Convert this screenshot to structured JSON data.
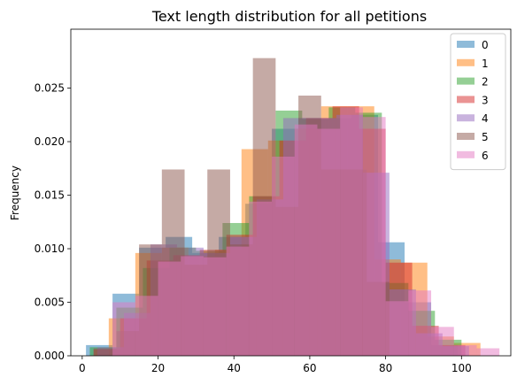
{
  "chart_data": {
    "type": "histogram",
    "title": "Text length distribution for all petitions",
    "xlabel": "",
    "ylabel": "Frequency",
    "xlim": [
      -3,
      113
    ],
    "ylim": [
      0,
      0.0305
    ],
    "x_ticks": [
      0,
      20,
      40,
      60,
      80,
      100
    ],
    "y_ticks": [
      0.0,
      0.005,
      0.01,
      0.015,
      0.02,
      0.025
    ],
    "y_tick_labels": [
      "0.000",
      "0.005",
      "0.010",
      "0.015",
      "0.020",
      "0.025"
    ],
    "grid": false,
    "legend_position": "top-right",
    "bar_alpha": 0.5,
    "series": [
      {
        "name": "0",
        "color": "#1f77b4",
        "bars": [
          [
            1,
            8,
            0.001
          ],
          [
            8,
            15,
            0.0058
          ],
          [
            15,
            22,
            0.0101
          ],
          [
            22,
            29,
            0.0111
          ],
          [
            29,
            36,
            0.0096
          ],
          [
            36,
            43,
            0.0111
          ],
          [
            43,
            50,
            0.0142
          ],
          [
            50,
            57,
            0.0212
          ],
          [
            57,
            64,
            0.0222
          ],
          [
            64,
            71,
            0.0222
          ],
          [
            71,
            78,
            0.0225
          ],
          [
            78,
            85,
            0.0106
          ],
          [
            85,
            92,
            0.005
          ],
          [
            92,
            99,
            0.001
          ]
        ]
      },
      {
        "name": "1",
        "color": "#ff7f0e",
        "bars": [
          [
            7,
            14,
            0.0035
          ],
          [
            14,
            21,
            0.0096
          ],
          [
            21,
            28,
            0.0101
          ],
          [
            28,
            35,
            0.0093
          ],
          [
            35,
            42,
            0.0099
          ],
          [
            42,
            49,
            0.0193
          ],
          [
            49,
            56,
            0.0201
          ],
          [
            56,
            63,
            0.0212
          ],
          [
            63,
            70,
            0.0233
          ],
          [
            70,
            77,
            0.0233
          ],
          [
            77,
            84,
            0.009
          ],
          [
            84,
            91,
            0.0087
          ],
          [
            91,
            98,
            0.0018
          ],
          [
            98,
            105,
            0.0012
          ]
        ]
      },
      {
        "name": "2",
        "color": "#2ca02c",
        "bars": [
          [
            2,
            9,
            0.0008
          ],
          [
            9,
            16,
            0.0045
          ],
          [
            16,
            23,
            0.0082
          ],
          [
            23,
            30,
            0.0101
          ],
          [
            30,
            37,
            0.0098
          ],
          [
            37,
            44,
            0.0124
          ],
          [
            44,
            51,
            0.0149
          ],
          [
            51,
            58,
            0.0229
          ],
          [
            58,
            65,
            0.0221
          ],
          [
            65,
            72,
            0.0232
          ],
          [
            72,
            79,
            0.0227
          ],
          [
            79,
            86,
            0.0068
          ],
          [
            86,
            93,
            0.0042
          ],
          [
            93,
            100,
            0.0015
          ]
        ]
      },
      {
        "name": "3",
        "color": "#d62728",
        "bars": [
          [
            3,
            10,
            0.0006
          ],
          [
            10,
            17,
            0.0035
          ],
          [
            17,
            24,
            0.0089
          ],
          [
            24,
            31,
            0.0094
          ],
          [
            31,
            38,
            0.0099
          ],
          [
            38,
            45,
            0.0113
          ],
          [
            45,
            52,
            0.0149
          ],
          [
            52,
            59,
            0.0201
          ],
          [
            59,
            66,
            0.0222
          ],
          [
            66,
            73,
            0.0233
          ],
          [
            73,
            80,
            0.0212
          ],
          [
            80,
            87,
            0.0087
          ],
          [
            87,
            94,
            0.0028
          ],
          [
            94,
            101,
            0.001
          ]
        ]
      },
      {
        "name": "4",
        "color": "#9467bd",
        "bars": [
          [
            4,
            11,
            0.0008
          ],
          [
            11,
            18,
            0.004
          ],
          [
            18,
            25,
            0.0104
          ],
          [
            25,
            32,
            0.0101
          ],
          [
            32,
            39,
            0.0096
          ],
          [
            39,
            46,
            0.0111
          ],
          [
            46,
            53,
            0.0146
          ],
          [
            53,
            60,
            0.0222
          ],
          [
            60,
            67,
            0.0222
          ],
          [
            67,
            74,
            0.0225
          ],
          [
            74,
            81,
            0.0171
          ],
          [
            81,
            88,
            0.0062
          ],
          [
            88,
            95,
            0.0021
          ],
          [
            95,
            102,
            0.0009
          ]
        ]
      },
      {
        "name": "5",
        "color": "#8c564b",
        "bars": [
          [
            3,
            9,
            0.0007
          ],
          [
            9,
            15,
            0.0023
          ],
          [
            15,
            21,
            0.0104
          ],
          [
            21,
            27,
            0.0174
          ],
          [
            27,
            33,
            0.0085
          ],
          [
            33,
            39,
            0.0174
          ],
          [
            39,
            45,
            0.0104
          ],
          [
            45,
            51,
            0.0278
          ],
          [
            51,
            57,
            0.0139
          ],
          [
            57,
            63,
            0.0243
          ],
          [
            63,
            69,
            0.0174
          ],
          [
            69,
            75,
            0.0174
          ],
          [
            75,
            81,
            0.0069
          ]
        ]
      },
      {
        "name": "6",
        "color": "#e377c2",
        "bars": [
          [
            8,
            14,
            0.005
          ],
          [
            14,
            20,
            0.0056
          ],
          [
            20,
            26,
            0.0088
          ],
          [
            26,
            32,
            0.0093
          ],
          [
            32,
            38,
            0.0092
          ],
          [
            38,
            44,
            0.0102
          ],
          [
            44,
            50,
            0.0144
          ],
          [
            50,
            56,
            0.0186
          ],
          [
            56,
            62,
            0.0216
          ],
          [
            62,
            68,
            0.0212
          ],
          [
            68,
            74,
            0.0232
          ],
          [
            74,
            80,
            0.0223
          ],
          [
            80,
            86,
            0.0051
          ],
          [
            86,
            92,
            0.0061
          ],
          [
            92,
            98,
            0.0027
          ],
          [
            98,
            104,
            0.001
          ],
          [
            104,
            110,
            0.0007
          ]
        ]
      }
    ]
  }
}
